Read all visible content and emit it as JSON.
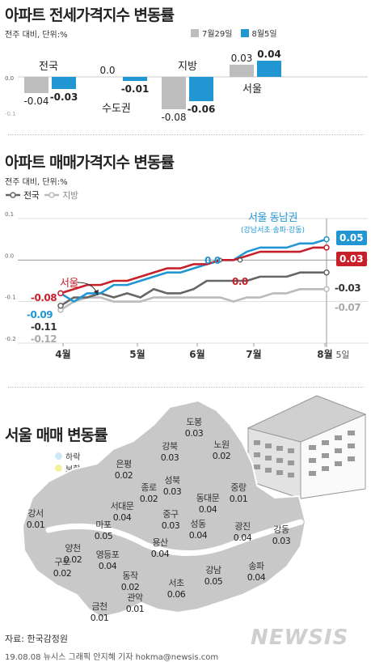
{
  "section1": {
    "title": "아파트 전세가격지수 변동률",
    "unit_note": "전주 대비, 단위:%",
    "legend": [
      {
        "label": "7월29일",
        "color": "#bdbdbd"
      },
      {
        "label": "8월5일",
        "color": "#2196d3"
      }
    ],
    "axis_ticks": [
      "0.0",
      "-0.1"
    ]
  },
  "section2": {
    "title": "아파트 매매가격지수 변동률",
    "unit_note": "전주 대비, 단위:%",
    "legend": [
      {
        "label": "전국",
        "color": "#666666"
      },
      {
        "label": "지방",
        "color": "#bbbbbb"
      }
    ],
    "y_ticks": [
      "0.1",
      "0.0",
      "-0.1",
      "-0.2"
    ],
    "x_ticks": [
      "4월",
      "5월",
      "6월",
      "7월",
      "8월",
      "5일"
    ],
    "annotations": {
      "seoul_label": "서울",
      "gangnam_label": "서울 동남권",
      "gangnam_sub": "(강남서초·송파·강동)",
      "seoul_start": "-0.08",
      "national_start": "-0.09",
      "national_start2": "-0.11",
      "local_start": "-0.12",
      "zero_a": "0.0",
      "zero_b": "0.0",
      "end_gangnam": "0.05",
      "end_seoul": "0.03",
      "end_national": "-0.03",
      "end_local": "-0.07"
    },
    "colors": {
      "gangnam": "#2196d3",
      "seoul": "#c8202b",
      "national": "#666666",
      "local": "#bbbbbb"
    }
  },
  "section3": {
    "title": "서울 매매 변동률",
    "legend": [
      {
        "label": "하락",
        "color": "#cfe8f7"
      },
      {
        "label": "보합",
        "color": "#f5f0a0"
      },
      {
        "label": "상승",
        "color": "#c8c8c8"
      }
    ],
    "districts": [
      {
        "name": "도봉",
        "value": "0.03"
      },
      {
        "name": "강북",
        "value": "0.03"
      },
      {
        "name": "노원",
        "value": "0.02"
      },
      {
        "name": "은평",
        "value": "0.02"
      },
      {
        "name": "성북",
        "value": "0.03"
      },
      {
        "name": "종로",
        "value": "0.02"
      },
      {
        "name": "중랑",
        "value": "0.01"
      },
      {
        "name": "서대문",
        "value": "0.04"
      },
      {
        "name": "동대문",
        "value": "0.04"
      },
      {
        "name": "강서",
        "value": "0.01"
      },
      {
        "name": "마포",
        "value": "0.05"
      },
      {
        "name": "중구",
        "value": "0.03"
      },
      {
        "name": "성동",
        "value": "0.04"
      },
      {
        "name": "광진",
        "value": "0.04"
      },
      {
        "name": "강동",
        "value": "0.03"
      },
      {
        "name": "용산",
        "value": "0.04"
      },
      {
        "name": "양천",
        "value": "0.02"
      },
      {
        "name": "영등포",
        "value": "0.04"
      },
      {
        "name": "구로",
        "value": "0.02"
      },
      {
        "name": "동작",
        "value": "0.02"
      },
      {
        "name": "송파",
        "value": "0.04"
      },
      {
        "name": "서초",
        "value": "0.06"
      },
      {
        "name": "강남",
        "value": "0.05"
      },
      {
        "name": "관악",
        "value": "0.01"
      },
      {
        "name": "금천",
        "value": "0.01"
      }
    ]
  },
  "chart_data": [
    {
      "type": "bar",
      "title": "아파트 전세가격지수 변동률",
      "categories": [
        "전국",
        "수도권",
        "지방",
        "서울"
      ],
      "series": [
        {
          "name": "7월29일",
          "values": [
            -0.04,
            0.0,
            -0.08,
            0.03
          ]
        },
        {
          "name": "8월5일",
          "values": [
            -0.03,
            -0.01,
            -0.06,
            0.04
          ]
        }
      ],
      "value_labels": [
        [
          "-0.04",
          "0.0",
          "-0.08",
          "0.03"
        ],
        [
          "-0.03",
          "-0.01",
          "-0.06",
          "0.04"
        ]
      ],
      "ylim": [
        -0.1,
        0.05
      ]
    },
    {
      "type": "line",
      "title": "아파트 매매가격지수 변동률",
      "ylim": [
        -0.2,
        0.1
      ],
      "x_ticks": [
        "4월",
        "5월",
        "6월",
        "7월",
        "8월"
      ],
      "series": [
        {
          "name": "서울 동남권",
          "values": [
            -0.08,
            -0.1,
            -0.08,
            -0.08,
            -0.06,
            -0.06,
            -0.05,
            -0.04,
            -0.03,
            -0.03,
            -0.02,
            -0.01,
            0.0,
            0.0,
            0.02,
            0.03,
            0.03,
            0.03,
            0.04,
            0.04,
            0.05
          ]
        },
        {
          "name": "서울",
          "values": [
            -0.08,
            -0.07,
            -0.06,
            -0.06,
            -0.05,
            -0.05,
            -0.04,
            -0.03,
            -0.02,
            -0.02,
            -0.01,
            -0.01,
            0.0,
            0.0,
            0.01,
            0.02,
            0.02,
            0.02,
            0.02,
            0.03,
            0.03
          ]
        },
        {
          "name": "전국",
          "values": [
            -0.11,
            -0.09,
            -0.09,
            -0.08,
            -0.09,
            -0.08,
            -0.09,
            -0.07,
            -0.08,
            -0.08,
            -0.07,
            -0.05,
            -0.05,
            -0.05,
            -0.05,
            -0.04,
            -0.04,
            -0.04,
            -0.03,
            -0.03,
            -0.03
          ]
        },
        {
          "name": "지방",
          "values": [
            -0.12,
            -0.1,
            -0.09,
            -0.09,
            -0.1,
            -0.1,
            -0.1,
            -0.09,
            -0.09,
            -0.09,
            -0.09,
            -0.09,
            -0.09,
            -0.1,
            -0.09,
            -0.09,
            -0.08,
            -0.08,
            -0.07,
            -0.07,
            -0.07
          ]
        }
      ]
    }
  ],
  "footer": {
    "source": "자료: 한국감정원",
    "credit": "19.08.08 뉴시스 그래픽 안지혜 기자 hokma@newsis.com",
    "logo": "NEWSIS"
  }
}
